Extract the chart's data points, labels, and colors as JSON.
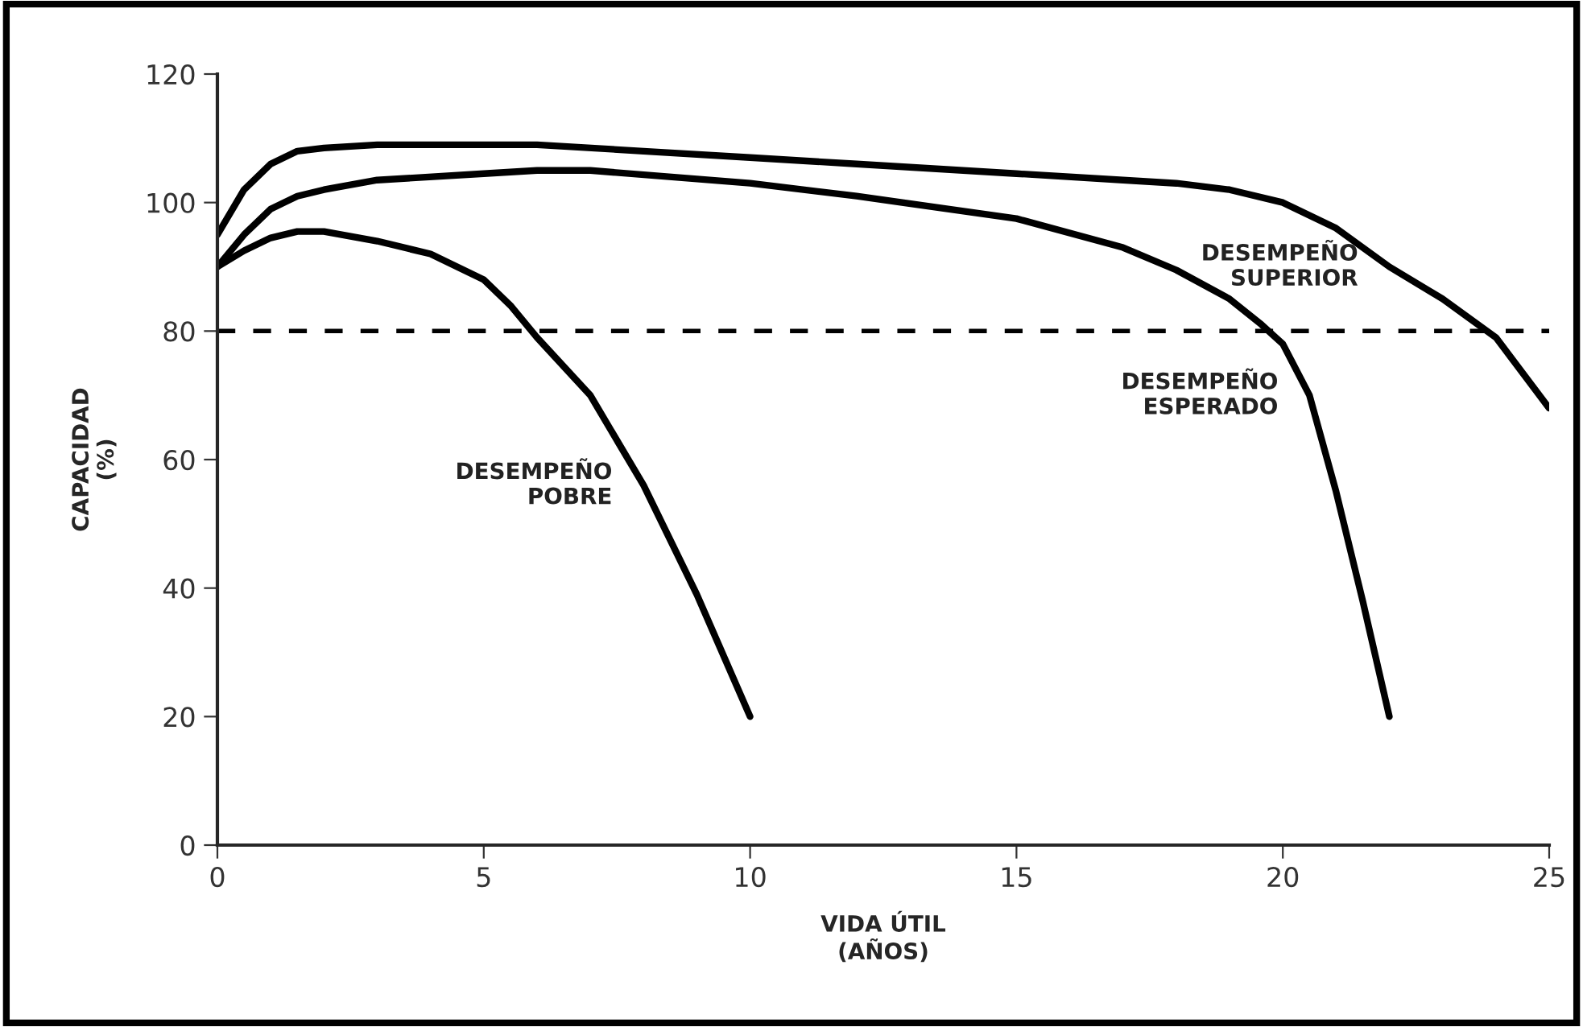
{
  "chart_data": {
    "type": "line",
    "xlabel": "VIDA ÚTIL\n(AÑOS)",
    "ylabel": "CAPACIDAD\n(%)",
    "xlim": [
      0,
      25
    ],
    "xticks": [
      0,
      5,
      10,
      15,
      20,
      25
    ],
    "ylim": [
      0,
      120
    ],
    "yticks": [
      0,
      20,
      40,
      60,
      80,
      100,
      120
    ],
    "grid": false,
    "legend": false,
    "marker": "none",
    "line_style": "solid",
    "series": [
      {
        "name": "DESEMPEÑO\nSUPERIOR",
        "color": "#000000",
        "x": [
          0,
          0.5,
          1,
          1.5,
          2,
          3,
          5,
          6,
          8,
          10,
          12,
          15,
          17,
          18,
          19,
          20,
          21,
          22,
          23,
          24,
          25
        ],
        "values": [
          95,
          102,
          106,
          108,
          108.5,
          109,
          109,
          109,
          108,
          107,
          106,
          104.5,
          103.5,
          103,
          102,
          100,
          96,
          90,
          85,
          79,
          68
        ]
      },
      {
        "name": "DESEMPEÑO\nESPERADO",
        "color": "#000000",
        "x": [
          0,
          0.5,
          1,
          1.5,
          2,
          3,
          5,
          6,
          7,
          10,
          12,
          15,
          17,
          18,
          19,
          19.6,
          20,
          20.5,
          21,
          21.5,
          22
        ],
        "values": [
          90,
          95,
          99,
          101,
          102,
          103.5,
          104.5,
          105,
          105,
          103,
          101,
          97.5,
          93,
          89.5,
          85,
          81,
          78,
          70,
          55,
          38,
          20
        ]
      },
      {
        "name": "DESEMPEÑO\nPOBRE",
        "color": "#000000",
        "x": [
          0,
          0.5,
          1,
          1.5,
          2,
          3,
          4,
          5,
          5.5,
          6,
          7,
          8,
          9,
          10
        ],
        "values": [
          90,
          92.5,
          94.5,
          95.5,
          95.5,
          94,
          92,
          88,
          84,
          79,
          70,
          56,
          39,
          20
        ]
      }
    ],
    "ref_lines": [
      {
        "axis": "y",
        "value": 80,
        "color": "#000000",
        "line_style": "dashed"
      }
    ]
  }
}
